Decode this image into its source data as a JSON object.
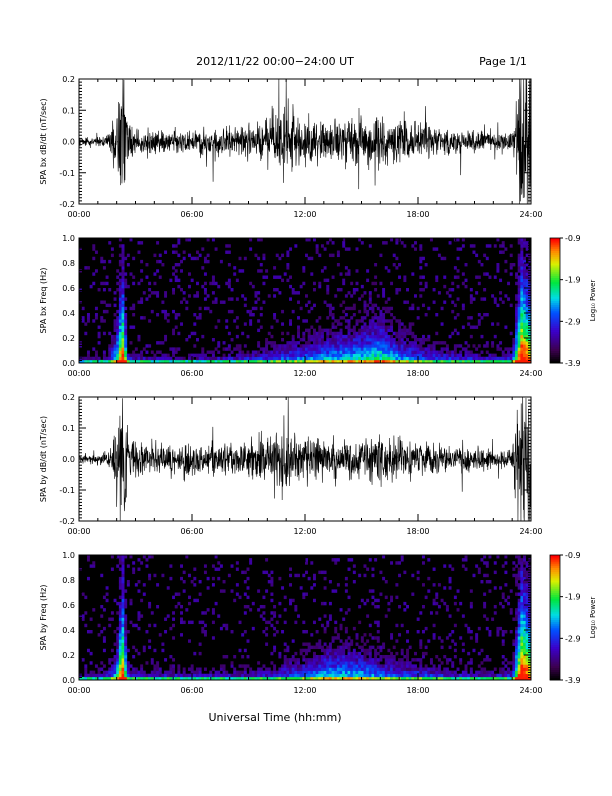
{
  "header": {
    "title": "2012/11/22  00:00−24:00 UT",
    "page_label": "Page 1/1"
  },
  "footer": {
    "xlabel": "Universal Time (hh:mm)"
  },
  "colors": {
    "trace": "#000000",
    "axis": "#000000",
    "spectrogram_background": "#000000"
  },
  "chart_data": [
    {
      "type": "line",
      "title": "",
      "ylabel": "SPA bx dB/dt (nT/sec)",
      "xlabel": "",
      "xlim": [
        0,
        24
      ],
      "ylim": [
        -0.2,
        0.2
      ],
      "x_ticks": [
        "00:00",
        "06:00",
        "12:00",
        "18:00",
        "24:00"
      ],
      "y_ticks": [
        "-0.2",
        "-0.1",
        "0.0",
        "0.1",
        "0.2"
      ],
      "activity": {
        "hours": [
          0,
          1.5,
          2.0,
          2.3,
          2.6,
          3.0,
          4.0,
          6.0,
          8.0,
          10.0,
          10.5,
          11.0,
          11.5,
          12.0,
          13.0,
          14.0,
          15.0,
          16.0,
          17.0,
          18.0,
          19.0,
          20.0,
          21.0,
          22.0,
          23.0,
          23.5,
          24.0
        ],
        "amplitude": [
          0.015,
          0.02,
          0.12,
          0.3,
          0.08,
          0.05,
          0.04,
          0.04,
          0.05,
          0.07,
          0.1,
          0.12,
          0.09,
          0.08,
          0.08,
          0.08,
          0.08,
          0.09,
          0.07,
          0.07,
          0.05,
          0.05,
          0.04,
          0.03,
          0.03,
          0.3,
          0.25
        ]
      }
    },
    {
      "type": "heatmap",
      "title": "",
      "ylabel": "SPA bx Freq (Hz)",
      "xlabel": "",
      "xlim": [
        0,
        24
      ],
      "ylim": [
        0,
        1.0
      ],
      "x_ticks": [
        "00:00",
        "06:00",
        "12:00",
        "18:00",
        "24:00"
      ],
      "y_ticks": [
        "0.0",
        "0.2",
        "0.4",
        "0.6",
        "0.8",
        "1.0"
      ],
      "colorbar": {
        "label": "Log₁₀ Power",
        "range": [
          -3.9,
          -0.9
        ],
        "ticks": [
          "-0.9",
          "-1.9",
          "-2.9",
          "-3.9"
        ]
      },
      "activity": {
        "hours": [
          0,
          1.5,
          2.0,
          2.3,
          2.6,
          3.0,
          4.0,
          6.0,
          8.0,
          10.0,
          11.0,
          12.0,
          13.0,
          14.0,
          15.0,
          16.0,
          17.0,
          18.0,
          19.0,
          20.0,
          21.0,
          22.0,
          23.0,
          23.5,
          24.0
        ],
        "max_freq": [
          0.06,
          0.08,
          0.35,
          0.9,
          0.15,
          0.1,
          0.08,
          0.08,
          0.1,
          0.15,
          0.2,
          0.22,
          0.28,
          0.32,
          0.35,
          0.42,
          0.28,
          0.22,
          0.16,
          0.14,
          0.12,
          0.1,
          0.12,
          0.95,
          0.7
        ]
      }
    },
    {
      "type": "line",
      "title": "",
      "ylabel": "SPA by dB/dt (nT/sec)",
      "xlabel": "",
      "xlim": [
        0,
        24
      ],
      "ylim": [
        -0.2,
        0.2
      ],
      "x_ticks": [
        "00:00",
        "06:00",
        "12:00",
        "18:00",
        "24:00"
      ],
      "y_ticks": [
        "-0.2",
        "-0.1",
        "0.0",
        "0.1",
        "0.2"
      ],
      "activity": {
        "hours": [
          0,
          1.5,
          2.0,
          2.3,
          2.6,
          3.0,
          4.0,
          6.0,
          8.0,
          10.0,
          10.5,
          11.0,
          11.5,
          12.0,
          13.0,
          14.0,
          15.0,
          16.0,
          17.0,
          18.0,
          19.0,
          20.0,
          21.0,
          22.0,
          23.0,
          23.5,
          24.0
        ],
        "amplitude": [
          0.015,
          0.02,
          0.12,
          0.3,
          0.1,
          0.06,
          0.05,
          0.05,
          0.05,
          0.08,
          0.11,
          0.12,
          0.08,
          0.07,
          0.07,
          0.07,
          0.07,
          0.08,
          0.07,
          0.06,
          0.06,
          0.05,
          0.04,
          0.03,
          0.03,
          0.3,
          0.25
        ]
      }
    },
    {
      "type": "heatmap",
      "title": "",
      "ylabel": "SPA by Freq (Hz)",
      "xlabel": "",
      "xlim": [
        0,
        24
      ],
      "ylim": [
        0,
        1.0
      ],
      "x_ticks": [
        "00:00",
        "06:00",
        "12:00",
        "18:00",
        "24:00"
      ],
      "y_ticks": [
        "0.0",
        "0.2",
        "0.4",
        "0.6",
        "0.8",
        "1.0"
      ],
      "colorbar": {
        "label": "Log₁₀ Power",
        "range": [
          -3.9,
          -0.9
        ],
        "ticks": [
          "-0.9",
          "-1.9",
          "-2.9",
          "-3.9"
        ]
      },
      "activity": {
        "hours": [
          0,
          1.5,
          2.0,
          2.3,
          2.6,
          3.0,
          4.0,
          6.0,
          8.0,
          10.0,
          11.0,
          12.0,
          13.0,
          14.0,
          15.0,
          16.0,
          17.0,
          18.0,
          19.0,
          20.0,
          21.0,
          22.0,
          23.0,
          23.5,
          24.0
        ],
        "max_freq": [
          0.07,
          0.1,
          0.3,
          0.95,
          0.15,
          0.12,
          0.1,
          0.1,
          0.1,
          0.12,
          0.18,
          0.22,
          0.3,
          0.32,
          0.3,
          0.24,
          0.18,
          0.18,
          0.14,
          0.12,
          0.1,
          0.1,
          0.12,
          0.95,
          0.7
        ]
      }
    }
  ]
}
